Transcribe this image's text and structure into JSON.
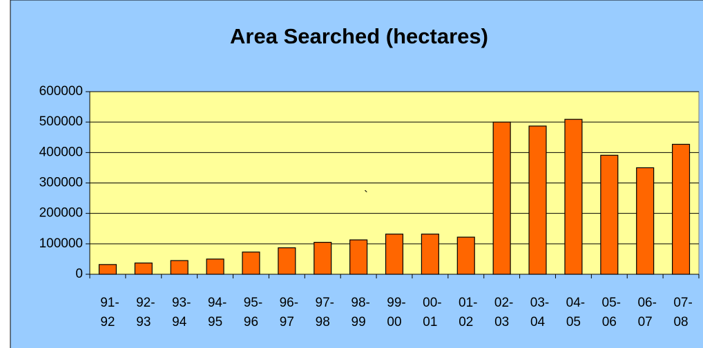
{
  "chart_data": {
    "type": "bar",
    "title": "Area Searched (hectares)",
    "categories": [
      "91-92",
      "92-93",
      "93-94",
      "94-95",
      "95-96",
      "96-97",
      "97-98",
      "98-99",
      "99-00",
      "00-01",
      "01-02",
      "02-03",
      "03-04",
      "04-05",
      "05-06",
      "06-07",
      "07-08"
    ],
    "values": [
      32000,
      37000,
      45000,
      50000,
      73000,
      87000,
      105000,
      113000,
      132000,
      132000,
      122000,
      500000,
      487000,
      509000,
      391000,
      350000,
      427000
    ],
    "color": "#ff6600",
    "ylim": [
      0,
      600000
    ],
    "yticks": [
      0,
      100000,
      200000,
      300000,
      400000,
      500000,
      600000
    ],
    "grid": true,
    "annotation": "`"
  }
}
